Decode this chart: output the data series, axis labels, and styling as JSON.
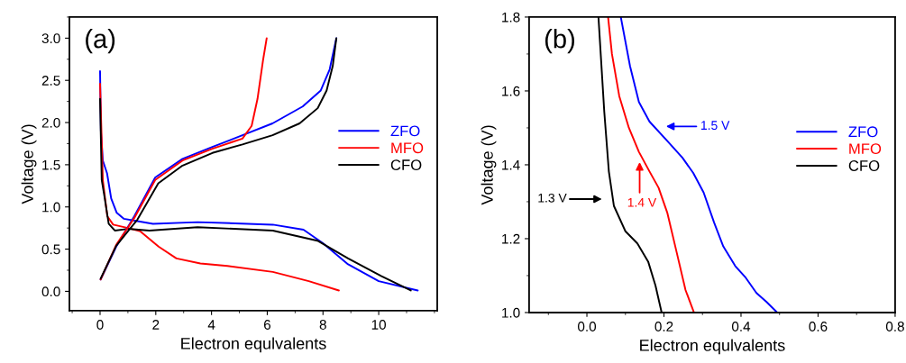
{
  "chart_data": [
    {
      "type": "line",
      "title": "(a)",
      "xlabel": "Electron equlvalents",
      "ylabel": "Voltage (V)",
      "xlim": [
        -1.1,
        12.1
      ],
      "ylim": [
        -0.23,
        3.25
      ],
      "xticks": [
        0,
        2,
        4,
        6,
        8,
        10
      ],
      "yticks": [
        {
          "value": 0,
          "label": "0.0"
        },
        0.5,
        {
          "value": 1,
          "label": "1.0"
        },
        1.5,
        {
          "value": 2,
          "label": "2.0"
        },
        2.5,
        {
          "value": 3,
          "label": "3.0"
        }
      ],
      "grid": false,
      "legend": "right",
      "marker": "none",
      "line_style": "solid",
      "series": [
        {
          "name": "ZFO",
          "color": "#0000ff",
          "x": [
            0,
            0.03,
            0.1,
            0.25,
            0.4,
            0.6,
            0.85,
            1.2,
            1.9,
            3.5,
            6.2,
            7.3,
            8.0,
            8.9,
            10.0,
            11.4
          ],
          "values": [
            2.61,
            1.9,
            1.55,
            1.4,
            1.1,
            0.93,
            0.86,
            0.84,
            0.8,
            0.82,
            0.79,
            0.73,
            0.57,
            0.32,
            0.12,
            0.01
          ]
        },
        {
          "name": "MFO",
          "color": "#ff0000",
          "x": [
            0,
            0.1,
            0.26,
            0.47,
            1.0,
            1.45,
            2.1,
            2.74,
            3.6,
            4.57,
            6.2,
            7.49,
            8.57
          ],
          "values": [
            2.46,
            1.32,
            0.89,
            0.79,
            0.75,
            0.71,
            0.53,
            0.39,
            0.33,
            0.3,
            0.23,
            0.12,
            0.01
          ]
        },
        {
          "name": "CFO",
          "color": "#000000",
          "x": [
            0,
            0.06,
            0.15,
            0.31,
            0.53,
            1.0,
            1.77,
            3.5,
            6.2,
            7.8,
            8.9,
            10.1,
            11.15
          ],
          "values": [
            2.28,
            1.32,
            1.14,
            0.8,
            0.72,
            0.74,
            0.72,
            0.76,
            0.72,
            0.6,
            0.39,
            0.18,
            0.01
          ]
        },
        {
          "color": "#0000ff",
          "x": [
            0.02,
            0.58,
            1.23,
            1.98,
            2.96,
            4.03,
            5.11,
            6.19,
            7.27,
            7.92,
            8.24,
            8.48
          ],
          "values": [
            0.14,
            0.53,
            0.89,
            1.35,
            1.57,
            1.71,
            1.85,
            1.99,
            2.19,
            2.38,
            2.63,
            3.0
          ]
        },
        {
          "color": "#ff0000",
          "x": [
            0.02,
            0.58,
            1.23,
            1.98,
            2.96,
            4.03,
            5.11,
            5.44,
            5.65,
            5.85,
            5.98
          ],
          "values": [
            0.14,
            0.55,
            0.87,
            1.32,
            1.55,
            1.69,
            1.81,
            1.96,
            2.28,
            2.74,
            3.0
          ]
        },
        {
          "color": "#000000",
          "x": [
            0.02,
            0.58,
            1.34,
            2.09,
            2.96,
            4.03,
            5.11,
            6.19,
            7.16,
            7.81,
            8.13,
            8.35,
            8.48
          ],
          "values": [
            0.15,
            0.54,
            0.85,
            1.28,
            1.49,
            1.64,
            1.74,
            1.85,
            1.99,
            2.17,
            2.38,
            2.67,
            3.0
          ]
        }
      ]
    },
    {
      "type": "line",
      "title": "(b)",
      "xlabel": "Electron equlvalents",
      "ylabel": "Voltage (V)",
      "xlim": [
        -0.15,
        0.8
      ],
      "ylim": [
        1.0,
        1.8
      ],
      "xticks": [
        {
          "value": 0,
          "label": "0.0"
        },
        0.2,
        0.4,
        0.6,
        0.8
      ],
      "yticks": [
        {
          "value": 1,
          "label": "1.0"
        },
        1.2,
        1.4,
        1.6,
        1.8
      ],
      "grid": false,
      "legend": "right",
      "marker": "none",
      "line_style": "solid",
      "series": [
        {
          "name": "ZFO",
          "color": "#0000ff",
          "x": [
            0.088,
            0.112,
            0.135,
            0.1625,
            0.209,
            0.248,
            0.276,
            0.303,
            0.33,
            0.354,
            0.385,
            0.4125,
            0.44,
            0.467,
            0.494
          ],
          "values": [
            1.8,
            1.667,
            1.57,
            1.517,
            1.464,
            1.419,
            1.378,
            1.325,
            1.244,
            1.179,
            1.126,
            1.094,
            1.053,
            1.028,
            1.0
          ]
        },
        {
          "name": "MFO",
          "color": "#ff0000",
          "x": [
            0.055,
            0.065,
            0.084,
            0.109,
            0.135,
            0.1625,
            0.186,
            0.209,
            0.233,
            0.256,
            0.278
          ],
          "values": [
            1.8,
            1.7,
            1.586,
            1.5,
            1.435,
            1.382,
            1.338,
            1.269,
            1.163,
            1.061,
            1.0
          ]
        },
        {
          "name": "CFO",
          "color": "#000000",
          "x": [
            0.03,
            0.045,
            0.057,
            0.07,
            0.1,
            0.131,
            0.159,
            0.178,
            0.194
          ],
          "values": [
            1.8,
            1.545,
            1.382,
            1.289,
            1.22,
            1.187,
            1.138,
            1.073,
            1.0
          ]
        }
      ],
      "annotations": [
        "1.5 V",
        "1.4 V",
        "1.3 V"
      ]
    }
  ]
}
